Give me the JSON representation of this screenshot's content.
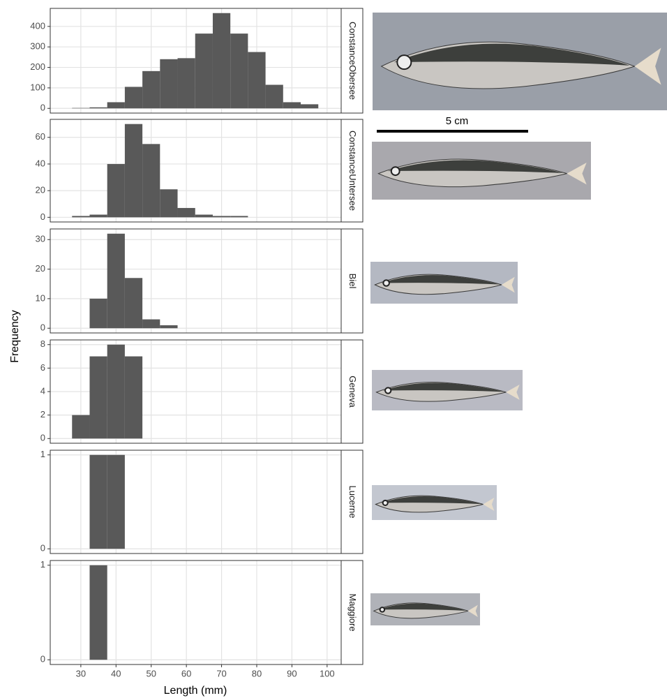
{
  "x_label": "Length (mm)",
  "y_label": "Frequency",
  "scale_bar_label": "5 cm",
  "chart_data": [
    {
      "type": "histogram",
      "title": "ConstanceObersee",
      "color": "#595959",
      "grid": true,
      "bins": [
        27.5,
        32.5,
        37.5,
        42.5,
        47.5,
        52.5,
        57.5,
        62.5,
        67.5,
        72.5,
        77.5,
        82.5,
        87.5,
        92.5,
        97.5
      ],
      "values": [
        2,
        5,
        30,
        105,
        182,
        240,
        245,
        365,
        465,
        365,
        275,
        115,
        30,
        20
      ],
      "xlim": [
        21.3,
        104
      ],
      "xticks": [
        30,
        40,
        50,
        60,
        70,
        80,
        90,
        100
      ],
      "ylim": [
        -23,
        488
      ],
      "yticks": [
        0,
        100,
        200,
        300,
        400
      ]
    },
    {
      "type": "histogram",
      "title": "ConstanceUntersee",
      "color": "#595959",
      "grid": true,
      "bins": [
        27.5,
        32.5,
        37.5,
        42.5,
        47.5,
        52.5,
        57.5,
        62.5,
        67.5,
        72.5,
        77.5
      ],
      "values": [
        1,
        2,
        40,
        70,
        55,
        21,
        7,
        2,
        1,
        1
      ],
      "xlim": [
        21.3,
        104
      ],
      "xticks": [
        30,
        40,
        50,
        60,
        70,
        80,
        90,
        100
      ],
      "ylim": [
        -3.5,
        73.5
      ],
      "yticks": [
        0,
        20,
        40,
        60
      ]
    },
    {
      "type": "histogram",
      "title": "Biel",
      "color": "#595959",
      "grid": true,
      "bins": [
        32.5,
        37.5,
        42.5,
        47.5,
        52.5,
        57.5
      ],
      "values": [
        10,
        32,
        17,
        3,
        1
      ],
      "xlim": [
        21.3,
        104
      ],
      "xticks": [
        30,
        40,
        50,
        60,
        70,
        80,
        90,
        100
      ],
      "ylim": [
        -1.6,
        33.6
      ],
      "yticks": [
        0,
        10,
        20,
        30
      ]
    },
    {
      "type": "histogram",
      "title": "Geneva",
      "color": "#595959",
      "grid": true,
      "bins": [
        27.5,
        32.5,
        37.5,
        42.5,
        47.5
      ],
      "values": [
        2,
        7,
        8,
        7
      ],
      "xlim": [
        21.3,
        104
      ],
      "xticks": [
        30,
        40,
        50,
        60,
        70,
        80,
        90,
        100
      ],
      "ylim": [
        -0.4,
        8.4
      ],
      "yticks": [
        0,
        2,
        4,
        6,
        8
      ]
    },
    {
      "type": "histogram",
      "title": "Lucerne",
      "color": "#595959",
      "grid": true,
      "bins": [
        32.5,
        37.5,
        42.5
      ],
      "values": [
        1,
        1
      ],
      "xlim": [
        21.3,
        104
      ],
      "xticks": [
        30,
        40,
        50,
        60,
        70,
        80,
        90,
        100
      ],
      "ylim": [
        -0.05,
        1.05
      ],
      "yticks": [
        0,
        1
      ]
    },
    {
      "type": "histogram",
      "title": "Maggiore",
      "color": "#595959",
      "grid": true,
      "bins": [
        32.5,
        37.5
      ],
      "values": [
        1
      ],
      "xlim": [
        21.3,
        104
      ],
      "xticks": [
        30,
        40,
        50,
        60,
        70,
        80,
        90,
        100
      ],
      "ylim": [
        -0.05,
        1.05
      ],
      "yticks": [
        0,
        1
      ]
    }
  ]
}
